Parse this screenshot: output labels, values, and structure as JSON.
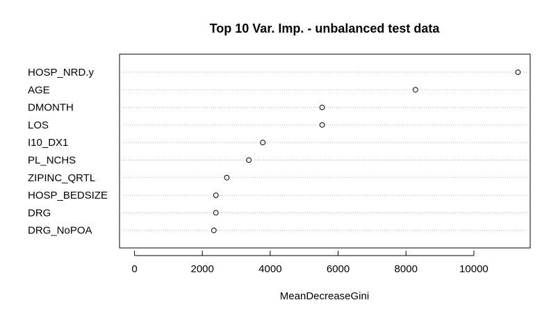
{
  "chart_data": {
    "type": "scatter",
    "title": "Top 10 Var. Imp. - unbalanced test data",
    "xlabel": "MeanDecreaseGini",
    "ylabel": "",
    "categories": [
      "HOSP_NRD.y",
      "AGE",
      "DMONTH",
      "LOS",
      "I10_DX1",
      "PL_NCHS",
      "ZIPINC_QRTL",
      "HOSP_BEDSIZE",
      "DRG",
      "DRG_NoPOA"
    ],
    "values": [
      11300,
      8280,
      5530,
      5530,
      3780,
      3370,
      2720,
      2400,
      2400,
      2340
    ],
    "xlim": [
      -440,
      11660
    ],
    "xticks": [
      0,
      2000,
      4000,
      6000,
      8000,
      10000
    ],
    "xtick_labels": [
      "0",
      "2000",
      "4000",
      "6000",
      "8000",
      "10000"
    ],
    "grid": "dotted horizontal guide lines",
    "marker": "open-circle"
  }
}
